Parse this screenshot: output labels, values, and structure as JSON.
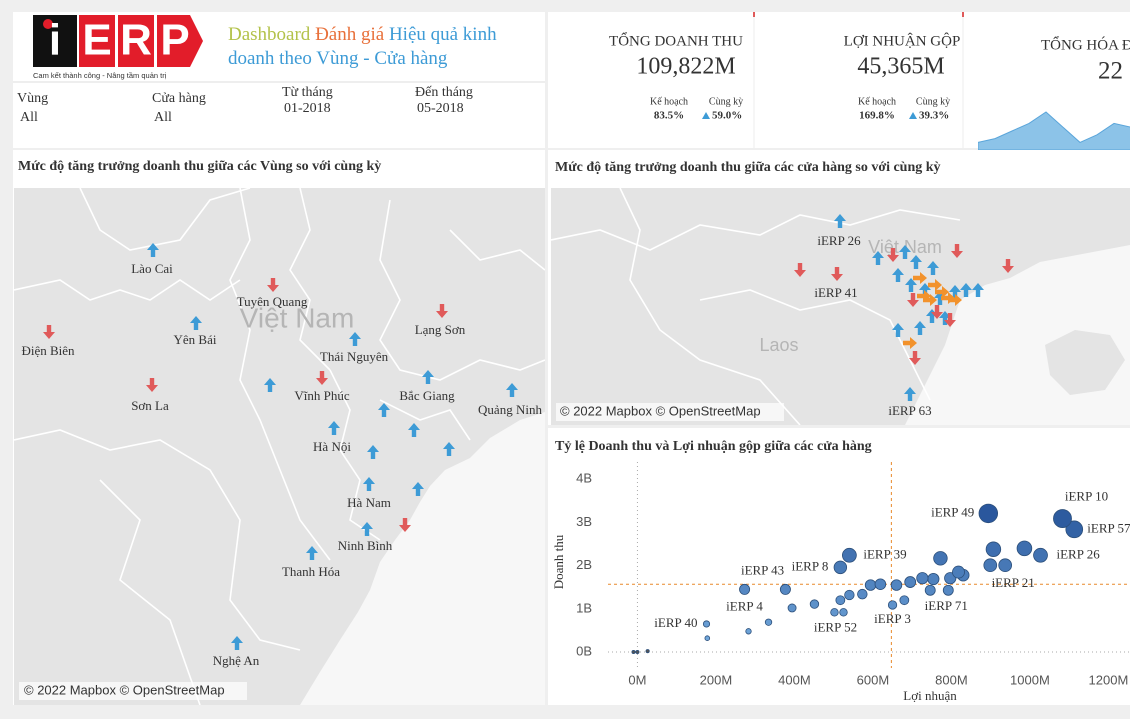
{
  "trend_colors": {
    "up": "#3d9bd6",
    "down": "#e05a5a",
    "flat": "#f2922c"
  },
  "header": {
    "logo_letters": [
      "i",
      "E",
      "R",
      "P"
    ],
    "tagline": "Cam kết thành công - Nâng tầm quản trị",
    "title_line1": [
      {
        "text": "Dashboard",
        "color": "#b3c24a"
      },
      {
        "text": "Đánh giá",
        "color": "#e8703a"
      },
      {
        "text": "Hiệu quả kinh",
        "color": "#3d9bd6"
      }
    ],
    "title_line2": [
      {
        "text": "doanh theo Vùng - Cửa hàng",
        "color": "#3d9bd6"
      }
    ]
  },
  "filters": [
    {
      "label": "Vùng",
      "value": "All"
    },
    {
      "label": "Cửa hàng",
      "value": "All"
    },
    {
      "label": "Từ tháng",
      "value": "01-2018"
    },
    {
      "label": "Đến tháng",
      "value": "05-2018"
    }
  ],
  "kpis": [
    {
      "title": "TỔNG DOANH THU",
      "value": "109,822M",
      "plan_label": "Kế hoạch",
      "plan": "83.5%",
      "prior_label": "Cùng kỳ",
      "prior": "59.0%",
      "prior_trend": "up"
    },
    {
      "title": "LỢI NHUẬN GỘP",
      "value": "45,365M",
      "plan_label": "Kế hoạch",
      "plan": "169.8%",
      "prior_label": "Cùng kỳ",
      "prior": "39.3%",
      "prior_trend": "up"
    },
    {
      "title": "TỔNG HÓA Đ",
      "value": "22",
      "sparkline": [
        2,
        3,
        5,
        7,
        10,
        6,
        2,
        4,
        7,
        6,
        8
      ]
    }
  ],
  "region_map": {
    "title": "Mức độ tăng trưởng doanh thu giữa các Vùng so với cùng kỳ",
    "country_label": "Việt Nam",
    "attribution": "© 2022 Mapbox © OpenStreetMap",
    "places": [
      {
        "name": "Lào Cai",
        "trend": "up"
      },
      {
        "name": "Tuyên Quang",
        "trend": "down"
      },
      {
        "name": "Yên Bái",
        "trend": "up"
      },
      {
        "name": "Lạng Sơn",
        "trend": "down"
      },
      {
        "name": "Điện Biên",
        "trend": "down"
      },
      {
        "name": "Thái Nguyên",
        "trend": "up"
      },
      {
        "name": "Vĩnh Phúc",
        "trend": "down"
      },
      {
        "name": "Bắc Giang",
        "trend": "up"
      },
      {
        "name": "Sơn La",
        "trend": "down"
      },
      {
        "name": "Quảng Ninh",
        "trend": "up"
      },
      {
        "name": "Hà Nội",
        "trend": "up"
      },
      {
        "name": "Hà Nam",
        "trend": "up"
      },
      {
        "name": "Ninh Bình",
        "trend": "down"
      },
      {
        "name": "Thanh Hóa",
        "trend": "up"
      },
      {
        "name": "Nghệ An",
        "trend": "up"
      }
    ],
    "extra_arrows": [
      "up",
      "up",
      "up",
      "up",
      "up",
      "up",
      "up"
    ]
  },
  "store_map": {
    "title": "Mức độ tăng trưởng doanh thu giữa các cửa hàng so với cùng kỳ",
    "country_labels": [
      "Việt Nam",
      "Laos"
    ],
    "attribution": "© 2022 Mapbox © OpenStreetMap",
    "places": [
      {
        "name": "iERP 26",
        "trend": "up"
      },
      {
        "name": "iERP 41",
        "trend": "down"
      },
      {
        "name": "iERP 63",
        "trend": "up"
      }
    ],
    "extra_arrows": [
      "up",
      "up",
      "up",
      "up",
      "up",
      "up",
      "up",
      "up",
      "up",
      "up",
      "up",
      "up",
      "up",
      "up",
      "up",
      "down",
      "down",
      "down",
      "down",
      "down",
      "down",
      "down",
      "down",
      "flat",
      "flat",
      "flat",
      "flat",
      "flat",
      "flat",
      "flat",
      "flat"
    ]
  },
  "scatter": {
    "title": "Tỷ lệ Doanh thu và Lợi nhuận gộp giữa các cửa hàng",
    "x_label": "Lợi nhuận",
    "y_label": "Doanh thu",
    "color": "#5b93c9",
    "xlim": [
      -75,
      1255
    ],
    "ylim": [
      -0.37,
      4.4
    ],
    "xticks": [
      {
        "value": 0,
        "label": "0M"
      },
      {
        "value": 200,
        "label": "200M"
      },
      {
        "value": 400,
        "label": "400M"
      },
      {
        "value": 600,
        "label": "600M"
      },
      {
        "value": 800,
        "label": "800M"
      },
      {
        "value": 1000,
        "label": "1000M"
      },
      {
        "value": 1200,
        "label": "1200M"
      }
    ],
    "yticks": [
      {
        "value": 0,
        "label": "0B"
      },
      {
        "value": 1,
        "label": "1B"
      },
      {
        "value": 2,
        "label": "2B"
      },
      {
        "value": 3,
        "label": "3B"
      },
      {
        "value": 4,
        "label": "4B"
      }
    ],
    "reference_lines": {
      "x": 647,
      "y": 1.57
    },
    "points": [
      {
        "x": -10,
        "y": 0
      },
      {
        "x": 0,
        "y": 0
      },
      {
        "x": 26,
        "y": 0.02
      },
      {
        "x": 176,
        "y": 0.65,
        "label": "iERP 40"
      },
      {
        "x": 178,
        "y": 0.32
      },
      {
        "x": 273,
        "y": 1.45,
        "label": "iERP 43"
      },
      {
        "x": 283,
        "y": 0.48,
        "label": "iERP 4"
      },
      {
        "x": 334,
        "y": 0.69
      },
      {
        "x": 377,
        "y": 1.45
      },
      {
        "x": 394,
        "y": 1.02
      },
      {
        "x": 451,
        "y": 1.11
      },
      {
        "x": 502,
        "y": 0.92
      },
      {
        "x": 525,
        "y": 0.92,
        "label": "iERP 52"
      },
      {
        "x": 517,
        "y": 1.96,
        "label": "iERP 8"
      },
      {
        "x": 540,
        "y": 2.24,
        "label": "iERP 39"
      },
      {
        "x": 517,
        "y": 1.2
      },
      {
        "x": 540,
        "y": 1.32
      },
      {
        "x": 573,
        "y": 1.34
      },
      {
        "x": 594,
        "y": 1.55
      },
      {
        "x": 619,
        "y": 1.57
      },
      {
        "x": 650,
        "y": 1.09,
        "label": "iERP 3"
      },
      {
        "x": 680,
        "y": 1.2
      },
      {
        "x": 660,
        "y": 1.55
      },
      {
        "x": 695,
        "y": 1.62
      },
      {
        "x": 726,
        "y": 1.71
      },
      {
        "x": 746,
        "y": 1.43
      },
      {
        "x": 754,
        "y": 1.69
      },
      {
        "x": 772,
        "y": 2.17
      },
      {
        "x": 792,
        "y": 1.43,
        "label": "iERP 71"
      },
      {
        "x": 797,
        "y": 1.71
      },
      {
        "x": 818,
        "y": 1.85
      },
      {
        "x": 830,
        "y": 1.78
      },
      {
        "x": 899,
        "y": 2.01
      },
      {
        "x": 894,
        "y": 3.21,
        "label": "iERP 49"
      },
      {
        "x": 907,
        "y": 2.38
      },
      {
        "x": 937,
        "y": 2.01,
        "label": "iERP 21"
      },
      {
        "x": 986,
        "y": 2.4
      },
      {
        "x": 1027,
        "y": 2.24,
        "label": "iERP 26"
      },
      {
        "x": 1083,
        "y": 3.09,
        "label": "iERP 10"
      },
      {
        "x": 1113,
        "y": 2.84,
        "label": "iERP 57"
      }
    ]
  }
}
